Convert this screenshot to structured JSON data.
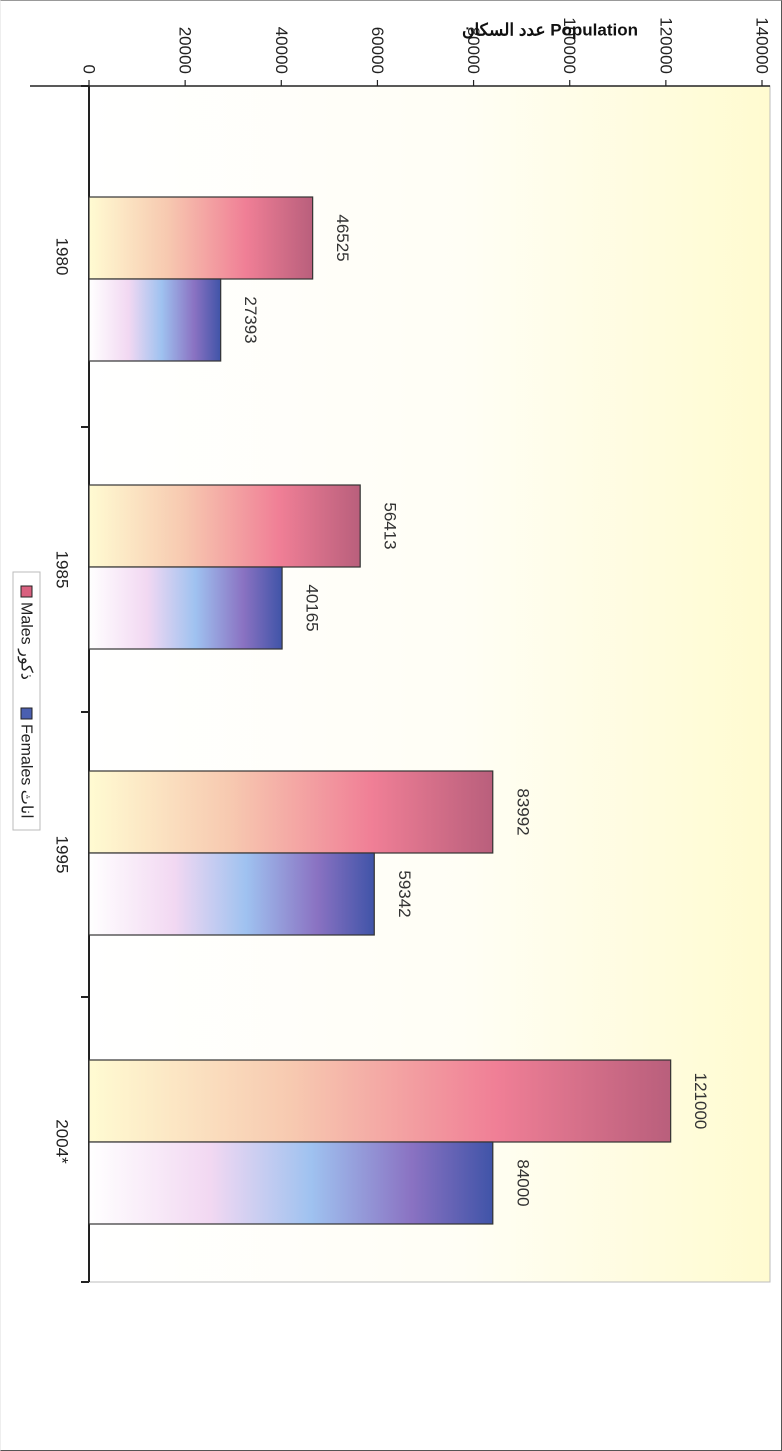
{
  "chart_data": {
    "type": "bar",
    "title": "عدد السكان Population",
    "categories": [
      "1980",
      "1985",
      "1995",
      "2004*"
    ],
    "series": [
      {
        "name": "Males ذكور",
        "values": [
          46525,
          56413,
          83992,
          121000
        ],
        "color": "#d9607f"
      },
      {
        "name": "Females اناث",
        "values": [
          27393,
          40165,
          59342,
          84000
        ],
        "color": "#4a5fb0"
      }
    ],
    "yticks": [
      "0",
      "20000",
      "40000",
      "60000",
      "80000",
      "100000",
      "120000",
      "140000"
    ],
    "ylim": [
      0,
      140000
    ],
    "xlabel": "",
    "ylabel": "",
    "legend_position": "bottom",
    "plot_background": "#fffde0"
  }
}
